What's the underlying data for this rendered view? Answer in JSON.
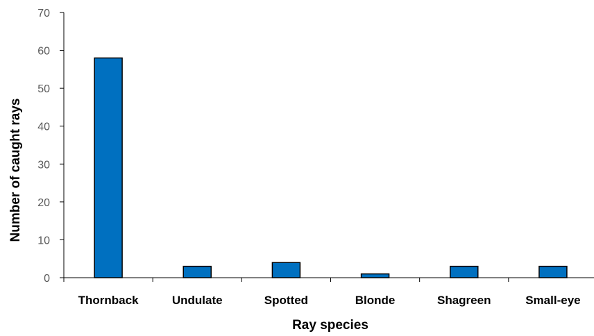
{
  "chart_data": {
    "type": "bar",
    "categories": [
      "Thornback",
      "Undulate",
      "Spotted",
      "Blonde",
      "Shagreen",
      "Small-eye"
    ],
    "values": [
      58,
      3,
      4,
      1,
      3,
      3
    ],
    "xlabel": "Ray species",
    "ylabel": "Number of caught rays",
    "ylim": [
      0,
      70
    ],
    "yticks": [
      0,
      10,
      20,
      30,
      40,
      50,
      60,
      70
    ],
    "grid": false,
    "legend": "none",
    "bar_color": "#0070C0"
  }
}
